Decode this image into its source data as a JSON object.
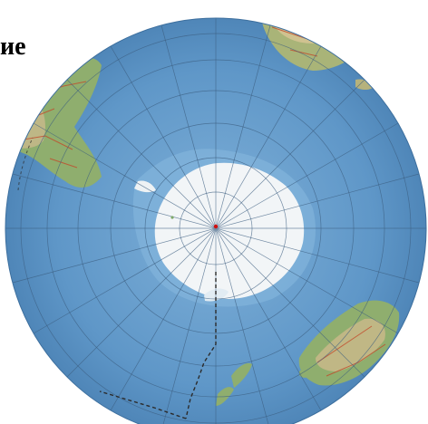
{
  "page": {
    "caption": "ие"
  },
  "map": {
    "projection": "orthographic-south-polar",
    "colors": {
      "ocean": "#5b93c4",
      "ocean_light": "#7fb0d8",
      "ice": "#f2f5f7",
      "land_green": "#7da86a",
      "land_tan": "#c9b98a",
      "graticule": "#3c5e80",
      "border_dashed": "#2b2b2b",
      "pole_marker": "#d01010",
      "roads": "#c24a2a"
    },
    "features": [
      {
        "name": "antarctica"
      },
      {
        "name": "south-america"
      },
      {
        "name": "africa"
      },
      {
        "name": "australia"
      },
      {
        "name": "new-zealand"
      },
      {
        "name": "south-pole"
      }
    ]
  }
}
